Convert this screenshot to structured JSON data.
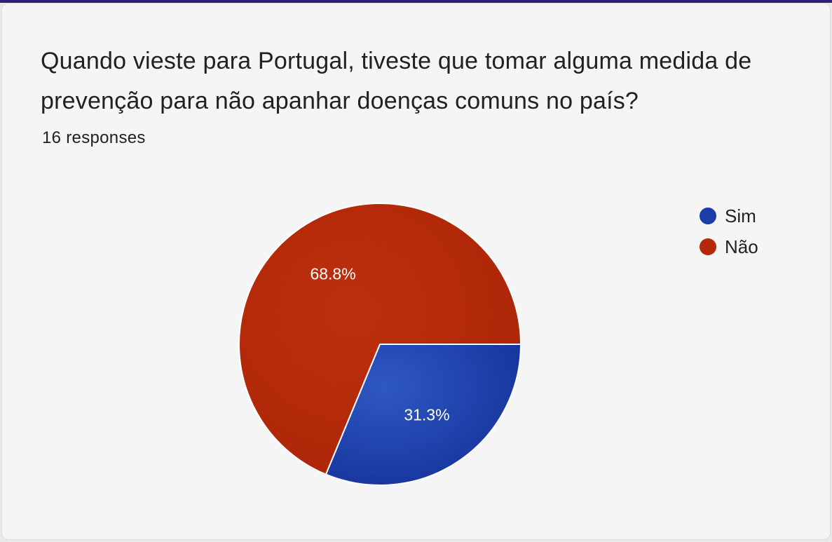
{
  "card": {
    "question": "Quando vieste para Portugal, tiveste que tomar alguma medida de prevenção para não apanhar doenças comuns no país?",
    "responses": "16 responses"
  },
  "chart_data": {
    "type": "pie",
    "categories": [
      "Sim",
      "Não"
    ],
    "values": [
      31.3,
      68.8
    ],
    "labels": [
      "31.3%",
      "68.8%"
    ],
    "colors": [
      "#1a3da8",
      "#b5290a"
    ],
    "legend_position": "right"
  }
}
